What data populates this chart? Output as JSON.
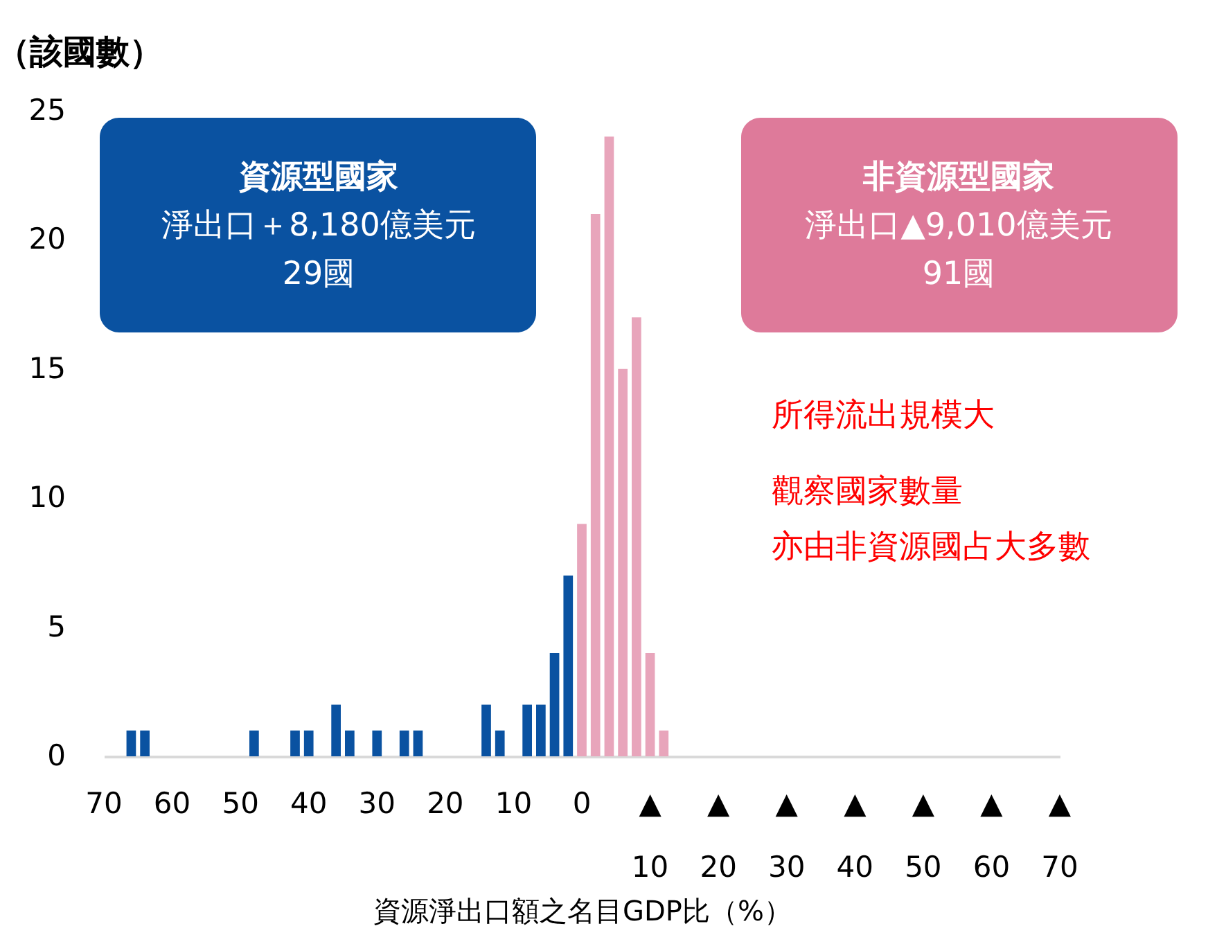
{
  "chart_data": {
    "type": "histogram",
    "ylabel": "（該國數）",
    "xlabel": "資源淨出口額之名目GDP比（%）",
    "bins": [
      67,
      65,
      63,
      61,
      59,
      57,
      55,
      53,
      51,
      49,
      47,
      45,
      43,
      41,
      39,
      37,
      35,
      33,
      31,
      29,
      27,
      25,
      23,
      21,
      19,
      17,
      15,
      13,
      11,
      9,
      7,
      5,
      3,
      1,
      -1,
      -3,
      -5,
      -7,
      -9,
      -11,
      -13
    ],
    "values": [
      1,
      1,
      0,
      0,
      0,
      0,
      0,
      0,
      0,
      1,
      0,
      0,
      1,
      1,
      0,
      2,
      1,
      0,
      1,
      0,
      1,
      1,
      0,
      0,
      0,
      0,
      2,
      1,
      0,
      2,
      2,
      4,
      7,
      9,
      21,
      24,
      15,
      17,
      4,
      1
    ],
    "colors": [
      "#0a52a1",
      "#0a52a1",
      "#0a52a1",
      "#0a52a1",
      "#0a52a1",
      "#0a52a1",
      "#0a52a1",
      "#0a52a1",
      "#0a52a1",
      "#0a52a1",
      "#0a52a1",
      "#0a52a1",
      "#0a52a1",
      "#0a52a1",
      "#0a52a1",
      "#0a52a1",
      "#0a52a1",
      "#0a52a1",
      "#0a52a1",
      "#0a52a1",
      "#0a52a1",
      "#0a52a1",
      "#0a52a1",
      "#0a52a1",
      "#0a52a1",
      "#0a52a1",
      "#0a52a1",
      "#0a52a1",
      "#0a52a1",
      "#0a52a1",
      "#0a52a1",
      "#0a52a1",
      "#0a52a1",
      "#e8a5bb",
      "#e8a5bb",
      "#e8a5bb",
      "#e8a5bb",
      "#e8a5bb",
      "#e8a5bb",
      "#e8a5bb"
    ],
    "xlim": [
      70,
      -70
    ],
    "xticks": [
      70,
      60,
      50,
      40,
      30,
      20,
      10,
      0,
      {
        "value": -10,
        "label": "▲10"
      },
      {
        "value": -20,
        "label": "▲20"
      },
      {
        "value": -30,
        "label": "▲30"
      },
      {
        "value": -40,
        "label": "▲40"
      },
      {
        "value": -50,
        "label": "▲50"
      },
      {
        "value": -60,
        "label": "▲60"
      },
      {
        "value": -70,
        "label": "▲70"
      }
    ],
    "ylim": [
      0,
      25
    ],
    "yticks": [
      0,
      5,
      10,
      15,
      20,
      25
    ],
    "grid": false,
    "legend": false,
    "annotations": [
      "資源型國家",
      "淨出口＋8,180億美元",
      "29國",
      "非資源型國家",
      "淨出口▲9,010億美元",
      "91國",
      "所得流出規模大",
      "觀察國家數量",
      "亦由非資源國占大多數"
    ]
  }
}
